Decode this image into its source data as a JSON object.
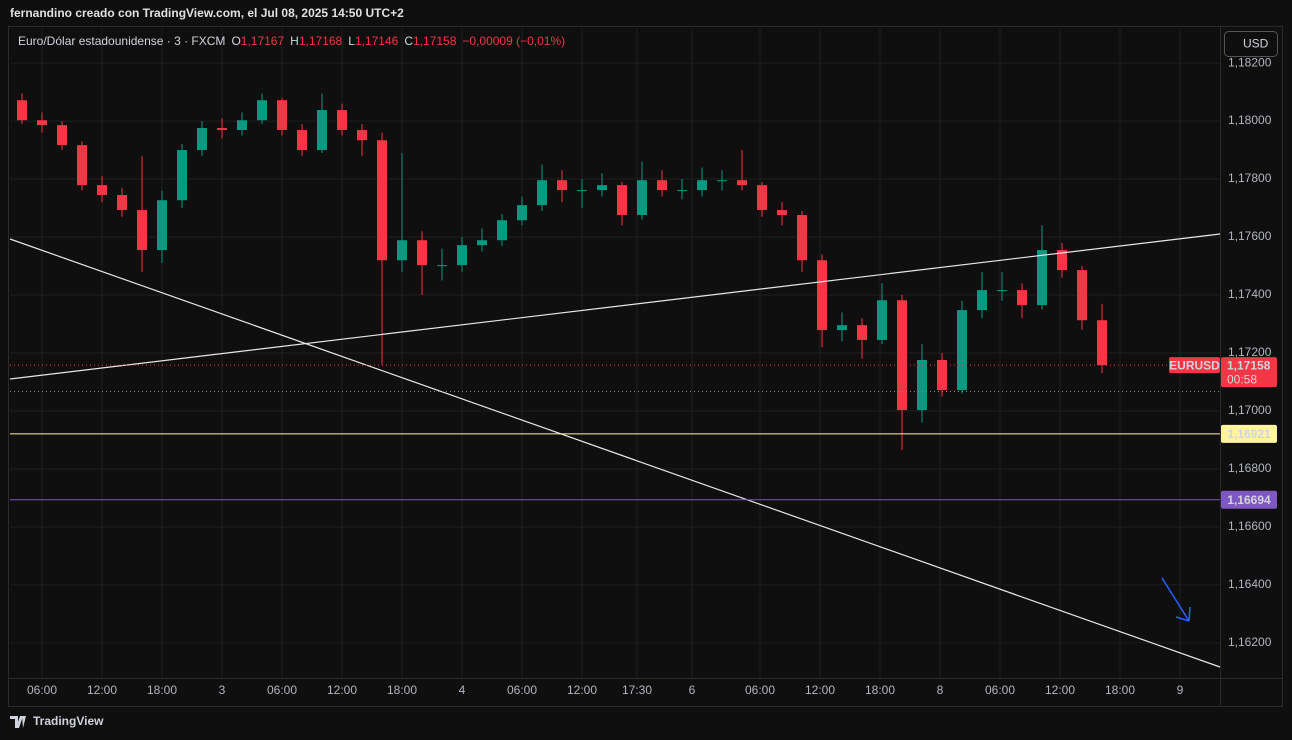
{
  "header": {
    "title": "fernandino creado con TradingView.com, el Jul 08, 2025 14:50 UTC+2"
  },
  "footer": {
    "brand": "TradingView"
  },
  "chart_data": {
    "type": "candlestick",
    "legend": {
      "symbol": "Euro/Dólar estadounidense · 3 · FXCM",
      "open_letter": "O",
      "open": {
        "value": 1.17167,
        "label": "1,17167"
      },
      "high_letter": "H",
      "high": {
        "value": 1.17168,
        "label": "1,17168"
      },
      "low_letter": "L",
      "low": {
        "value": 1.17146,
        "label": "1,17146"
      },
      "close_letter": "C",
      "close": {
        "value": 1.17158,
        "label": "1,17158"
      },
      "change": {
        "value": -9e-05,
        "label": "−0,00009 (−0,01%)"
      }
    },
    "currency": "USD",
    "up_color": "#089981",
    "down_color": "#f23645",
    "candles": [
      [
        1.18072,
        1.18095,
        1.1799,
        1.18003
      ],
      [
        1.18003,
        1.1803,
        1.1796,
        1.17986
      ],
      [
        1.17986,
        1.18,
        1.179,
        1.17917
      ],
      [
        1.17917,
        1.1793,
        1.1776,
        1.17779
      ],
      [
        1.17779,
        1.1781,
        1.1772,
        1.17745
      ],
      [
        1.17745,
        1.1777,
        1.1767,
        1.17693
      ],
      [
        1.17693,
        1.1788,
        1.17479,
        1.17555
      ],
      [
        1.17555,
        1.1776,
        1.1751,
        1.17727
      ],
      [
        1.17727,
        1.1792,
        1.177,
        1.179
      ],
      [
        1.179,
        1.18,
        1.1788,
        1.17976
      ],
      [
        1.17976,
        1.1801,
        1.1794,
        1.17969
      ],
      [
        1.17969,
        1.1803,
        1.1795,
        1.18003
      ],
      [
        1.18003,
        1.18095,
        1.1799,
        1.18072
      ],
      [
        1.18072,
        1.1808,
        1.1795,
        1.17969
      ],
      [
        1.17969,
        1.1799,
        1.1788,
        1.179
      ],
      [
        1.179,
        1.18095,
        1.1789,
        1.18038
      ],
      [
        1.18038,
        1.1806,
        1.1795,
        1.17969
      ],
      [
        1.17969,
        1.1799,
        1.1788,
        1.17934
      ],
      [
        1.17934,
        1.1796,
        1.1716,
        1.1752
      ],
      [
        1.1752,
        1.1789,
        1.1748,
        1.17589
      ],
      [
        1.17589,
        1.1762,
        1.174,
        1.17503
      ],
      [
        1.17503,
        1.1756,
        1.1745,
        1.17503
      ],
      [
        1.17503,
        1.176,
        1.1748,
        1.17572
      ],
      [
        1.17572,
        1.1763,
        1.1755,
        1.17589
      ],
      [
        1.17589,
        1.1768,
        1.1757,
        1.17658
      ],
      [
        1.17658,
        1.1774,
        1.1764,
        1.1771
      ],
      [
        1.1771,
        1.1785,
        1.1769,
        1.17796
      ],
      [
        1.17796,
        1.1783,
        1.1772,
        1.17762
      ],
      [
        1.17762,
        1.178,
        1.177,
        1.17762
      ],
      [
        1.17762,
        1.1782,
        1.1774,
        1.17779
      ],
      [
        1.17779,
        1.1779,
        1.1764,
        1.17676
      ],
      [
        1.17676,
        1.1786,
        1.1766,
        1.17796
      ],
      [
        1.17796,
        1.1783,
        1.1774,
        1.17762
      ],
      [
        1.17762,
        1.178,
        1.1773,
        1.17762
      ],
      [
        1.17762,
        1.1784,
        1.1774,
        1.17796
      ],
      [
        1.17796,
        1.1783,
        1.1776,
        1.17796
      ],
      [
        1.17796,
        1.179,
        1.1776,
        1.17779
      ],
      [
        1.17779,
        1.1779,
        1.1767,
        1.17693
      ],
      [
        1.17693,
        1.1772,
        1.1764,
        1.17676
      ],
      [
        1.17676,
        1.1769,
        1.1748,
        1.1752
      ],
      [
        1.1752,
        1.1754,
        1.1722,
        1.17279
      ],
      [
        1.17279,
        1.1734,
        1.1724,
        1.17296
      ],
      [
        1.17296,
        1.1732,
        1.1718,
        1.17245
      ],
      [
        1.17245,
        1.17441,
        1.1723,
        1.17382
      ],
      [
        1.17382,
        1.174,
        1.16865,
        1.17003
      ],
      [
        1.17003,
        1.1723,
        1.1696,
        1.17176
      ],
      [
        1.17176,
        1.172,
        1.1705,
        1.17072
      ],
      [
        1.17072,
        1.1738,
        1.1706,
        1.17348
      ],
      [
        1.17348,
        1.1748,
        1.1732,
        1.17417
      ],
      [
        1.17417,
        1.1748,
        1.1738,
        1.17417
      ],
      [
        1.17417,
        1.1744,
        1.1732,
        1.17365
      ],
      [
        1.17365,
        1.17641,
        1.1735,
        1.17555
      ],
      [
        1.17555,
        1.1758,
        1.1746,
        1.17486
      ],
      [
        1.17486,
        1.175,
        1.1728,
        1.17313
      ],
      [
        1.17313,
        1.1737,
        1.1713,
        1.17158
      ]
    ],
    "ylim": [
      1.16079,
      1.18321
    ],
    "yticks": [
      {
        "value": 1.182,
        "label": "1,18200"
      },
      {
        "value": 1.18,
        "label": "1,18000"
      },
      {
        "value": 1.178,
        "label": "1,17800"
      },
      {
        "value": 1.176,
        "label": "1,17600"
      },
      {
        "value": 1.174,
        "label": "1,17400"
      },
      {
        "value": 1.172,
        "label": "1,17200"
      },
      {
        "value": 1.17,
        "label": "1,17000"
      },
      {
        "value": 1.168,
        "label": "1,16800"
      },
      {
        "value": 1.166,
        "label": "1,16600"
      },
      {
        "value": 1.164,
        "label": "1,16400"
      },
      {
        "value": 1.162,
        "label": "1,16200"
      }
    ],
    "xlim": [
      -0.1,
      60.4
    ],
    "xticks": [
      {
        "value": 1.5,
        "label": "06:00"
      },
      {
        "value": 4.5,
        "label": "12:00"
      },
      {
        "value": 7.5,
        "label": "18:00"
      },
      {
        "value": 10.5,
        "label": "3"
      },
      {
        "value": 13.5,
        "label": "06:00"
      },
      {
        "value": 16.5,
        "label": "12:00"
      },
      {
        "value": 19.5,
        "label": "18:00"
      },
      {
        "value": 22.5,
        "label": "4"
      },
      {
        "value": 25.5,
        "label": "06:00"
      },
      {
        "value": 28.5,
        "label": "12:00"
      },
      {
        "value": 31.25,
        "label": "17:30"
      },
      {
        "value": 34,
        "label": "6"
      },
      {
        "value": 37.4,
        "label": "06:00"
      },
      {
        "value": 40.4,
        "label": "12:00"
      },
      {
        "value": 43.4,
        "label": "18:00"
      },
      {
        "value": 46.4,
        "label": "8"
      },
      {
        "value": 49.4,
        "label": "06:00"
      },
      {
        "value": 52.4,
        "label": "12:00"
      },
      {
        "value": 55.4,
        "label": "18:00"
      },
      {
        "value": 58.4,
        "label": "9"
      }
    ],
    "grid": true,
    "price_lines": [
      {
        "value": 1.16921,
        "label": "1,16921",
        "color": "#fff59d",
        "text_color": "#000000"
      },
      {
        "value": 1.16694,
        "label": "1,16694",
        "color": "#7e57c2",
        "text_color": "#ffffff"
      }
    ],
    "last_price": {
      "symbol": "EURUSD",
      "value": 1.17158,
      "label": "1,17158",
      "countdown": "00:58",
      "color": "#f23645"
    }
  }
}
